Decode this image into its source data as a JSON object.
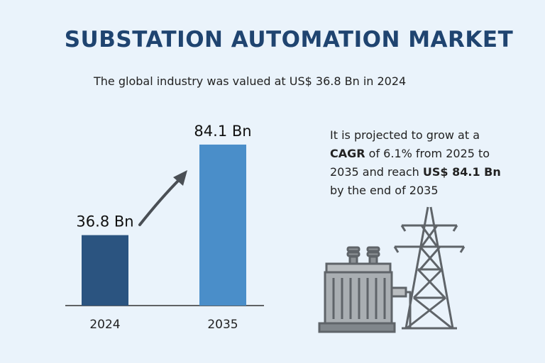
{
  "title": "SUBSTATION AUTOMATION MARKET",
  "subtitle": "The global industry was valued at US$ 36.8 Bn in 2024",
  "description": {
    "part1": "It is projected to grow at a ",
    "cagr_label": "CAGR",
    "part2": " of 6.1% from 2025 to 2035 and reach ",
    "reach_value": "US$ 84.1 Bn",
    "part3": " by the end of 2035"
  },
  "chart_data": {
    "type": "bar",
    "categories": [
      "2024",
      "2035"
    ],
    "values": [
      36.8,
      84.1
    ],
    "data_labels": [
      "36.8 Bn",
      "84.1 Bn"
    ],
    "unit": "US$ Bn",
    "title": "",
    "xlabel": "",
    "ylabel": "",
    "colors": [
      "#2b5480",
      "#4a8ec9"
    ],
    "grid": false,
    "legend": "none"
  },
  "illustration": {
    "icons": [
      "growth-arrow-icon",
      "transformer-icon",
      "transmission-tower-icon"
    ],
    "color": "#5f6469"
  }
}
